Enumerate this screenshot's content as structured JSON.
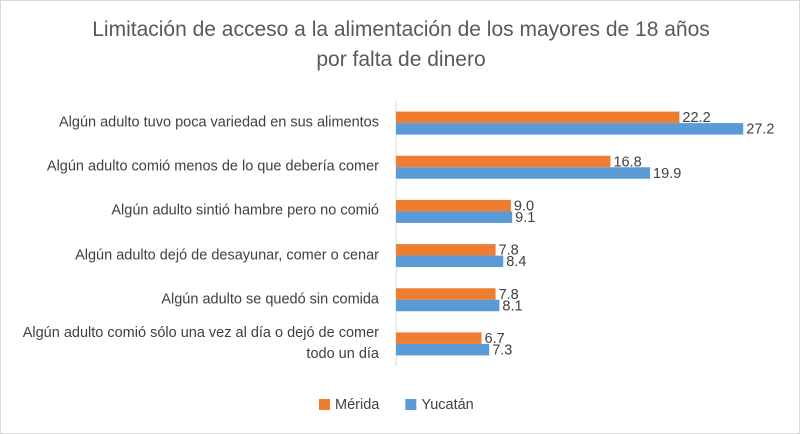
{
  "chart_data": {
    "type": "hbar",
    "title": "Limitación de acceso a la alimentación de los mayores de 18 años por falta de dinero",
    "categories": [
      "Algún adulto tuvo poca variedad en sus alimentos",
      "Algún adulto comió menos de lo que debería comer",
      "Algún adulto sintió hambre pero no comió",
      "Algún adulto dejó de desayunar, comer o cenar",
      "Algún adulto se quedó sin comida",
      "Algún adulto comió sólo una vez al día o dejó de comer todo un día"
    ],
    "series": [
      {
        "name": "Mérida",
        "color": "#ed7d31",
        "values": [
          22.2,
          16.8,
          9,
          7.8,
          7.8,
          6.7
        ],
        "value_labels": [
          "22.2",
          "16.8",
          "9.0",
          "7.8",
          "7.8",
          "6.7"
        ]
      },
      {
        "name": "Yucatán",
        "color": "#5b9bd5",
        "values": [
          27.2,
          19.9,
          9.1,
          8.4,
          8.1,
          7.3
        ],
        "value_labels": [
          "27.2",
          "19.9",
          "9.1",
          "8.4",
          "8.1",
          "7.3"
        ]
      }
    ],
    "xlim": [
      0,
      30
    ]
  }
}
